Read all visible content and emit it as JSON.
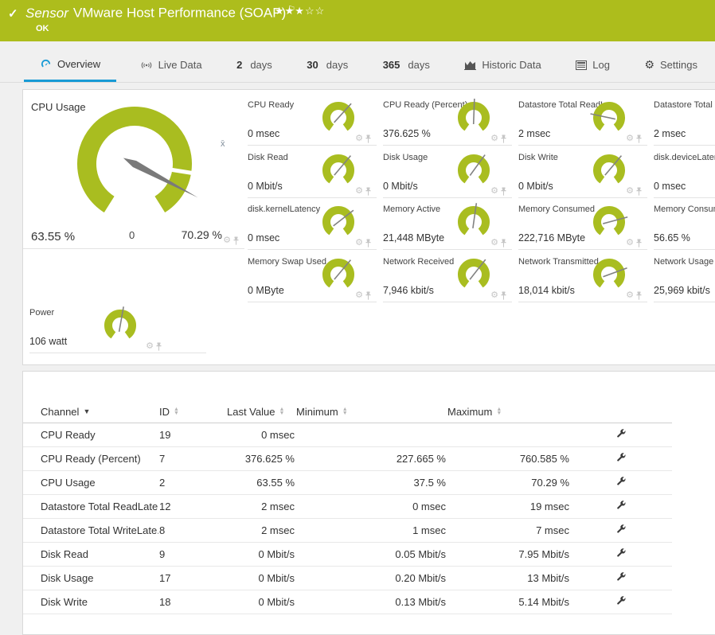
{
  "colors": {
    "header_green": "#adbd1c",
    "gauge_green": "#a9bd20",
    "accent_blue": "#189ad5",
    "needle_gray": "#828282"
  },
  "header": {
    "check_icon": "✓",
    "sensor_label": "Sensor",
    "title": "VMware Host Performance (SOAP)",
    "flag_icon": "⚐",
    "stars": "★★★☆☆",
    "stars_filled": 3,
    "stars_total": 5,
    "status": "OK"
  },
  "tabs": {
    "overview": {
      "label": "Overview"
    },
    "live_data": {
      "label": "Live Data"
    },
    "days2": {
      "strong": "2",
      "label": "days"
    },
    "days30": {
      "strong": "30",
      "label": "days"
    },
    "days365": {
      "strong": "365",
      "label": "days"
    },
    "historic": {
      "label": "Historic Data"
    },
    "log": {
      "label": "Log"
    },
    "settings": {
      "label": "Settings"
    }
  },
  "main_gauge": {
    "title": "CPU Usage",
    "value": "63.55 %",
    "scale_min": "0",
    "scale_max": "70.29 %",
    "avg_marker": "x̄",
    "needle_deg": 118,
    "notch_deg": 99
  },
  "gauges": [
    {
      "title": "CPU Ready",
      "value": "0 msec",
      "needle_deg": 42
    },
    {
      "title": "CPU Ready (Percent)",
      "value": "376.625 %",
      "needle_deg": 2
    },
    {
      "title": "Datastore Total ReadLa...",
      "value": "2 msec",
      "needle_deg": -78
    },
    {
      "title": "Datastore Total WriteL...",
      "value": "2 msec",
      "needle_deg": -58
    },
    {
      "title": "Disk Read",
      "value": "0 Mbit/s",
      "needle_deg": 40
    },
    {
      "title": "Disk Usage",
      "value": "0 Mbit/s",
      "needle_deg": 36
    },
    {
      "title": "Disk Write",
      "value": "0 Mbit/s",
      "needle_deg": 40
    },
    {
      "title": "disk.deviceLatency",
      "value": "0 msec",
      "needle_deg": 36
    },
    {
      "title": "disk.kernelLatency",
      "value": "0 msec",
      "needle_deg": 52
    },
    {
      "title": "Memory Active",
      "value": "21,448 MByte",
      "needle_deg": 8
    },
    {
      "title": "Memory Consumed",
      "value": "222,716 MByte",
      "needle_deg": 75
    },
    {
      "title": "Memory Consumed (P...",
      "value": "56.65 %",
      "needle_deg": 18
    },
    {
      "title": "Memory Swap Used",
      "value": "0 MByte",
      "needle_deg": 40
    },
    {
      "title": "Network Received",
      "value": "7,946 kbit/s",
      "needle_deg": 38
    },
    {
      "title": "Network Transmitted",
      "value": "18,014 kbit/s",
      "needle_deg": 70
    },
    {
      "title": "Network Usage",
      "value": "25,969 kbit/s",
      "needle_deg": 40
    }
  ],
  "power_gauge": {
    "title": "Power",
    "value": "106 watt",
    "needle_deg": 10
  },
  "table": {
    "columns": {
      "channel": "Channel",
      "id": "ID",
      "last": "Last Value",
      "min": "Minimum",
      "max": "Maximum"
    },
    "rows": [
      {
        "channel": "CPU Ready",
        "id": "19",
        "last": "0 msec",
        "min": "",
        "max": ""
      },
      {
        "channel": "CPU Ready (Percent)",
        "id": "7",
        "last": "376.625 %",
        "min": "227.665 %",
        "max": "760.585 %"
      },
      {
        "channel": "CPU Usage",
        "id": "2",
        "last": "63.55 %",
        "min": "37.5 %",
        "max": "70.29 %"
      },
      {
        "channel": "Datastore Total ReadLate...",
        "id": "12",
        "last": "2 msec",
        "min": "0 msec",
        "max": "19 msec"
      },
      {
        "channel": "Datastore Total WriteLate...",
        "id": "8",
        "last": "2 msec",
        "min": "1 msec",
        "max": "7 msec"
      },
      {
        "channel": "Disk Read",
        "id": "9",
        "last": "0 Mbit/s",
        "min": "0.05 Mbit/s",
        "max": "7.95 Mbit/s"
      },
      {
        "channel": "Disk Usage",
        "id": "17",
        "last": "0 Mbit/s",
        "min": "0.20 Mbit/s",
        "max": "13 Mbit/s"
      },
      {
        "channel": "Disk Write",
        "id": "18",
        "last": "0 Mbit/s",
        "min": "0.13 Mbit/s",
        "max": "5.14 Mbit/s"
      }
    ]
  }
}
